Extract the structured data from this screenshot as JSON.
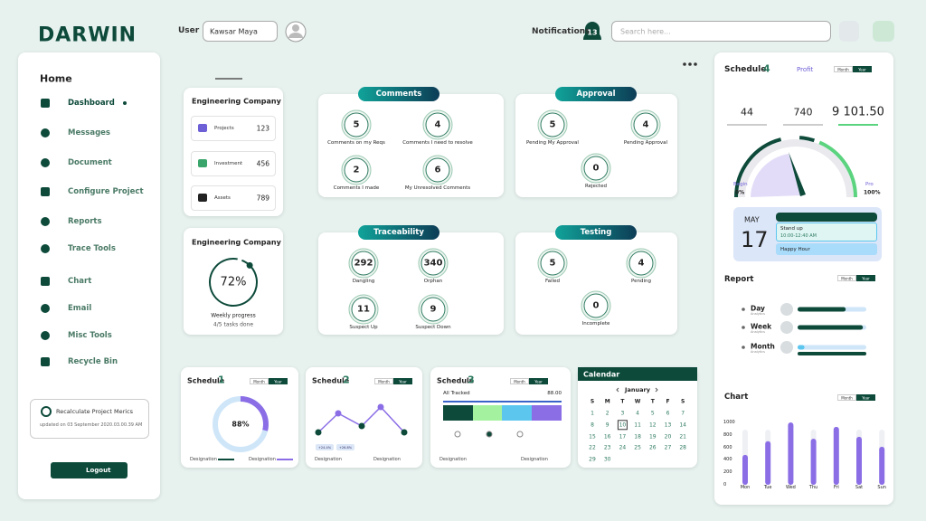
{
  "header": {
    "brand": "DARWIN",
    "user_label": "User",
    "user_name": "Kawsar Maya",
    "notifications": "Notifications",
    "notification_count": "13",
    "search_placeholder": "Search here..."
  },
  "sidebar": {
    "title": "Home",
    "items": [
      "Dashboard",
      "Messages",
      "Document",
      "Configure Project",
      "Reports",
      "Trace Tools",
      "Chart",
      "Email",
      "Misc Tools",
      "Recycle Bin"
    ],
    "recalculate": "Recalculate Project Merics",
    "updated": "updated on 03 September 2020.03.00.39 AM",
    "logout": "Logout"
  },
  "company": {
    "title": "Engineering Company",
    "items": [
      {
        "label": "Projects",
        "value": "123"
      },
      {
        "label": "Investment",
        "value": "456"
      },
      {
        "label": "Assets",
        "value": "789"
      }
    ]
  },
  "progress": {
    "title": "Engineering Company",
    "percent": "72%",
    "label": "Weekly progress",
    "tasks": "4/5 tasks done"
  },
  "cards": [
    {
      "title": "Comments",
      "items": [
        {
          "value": "5",
          "label": "Comments on my Reqs"
        },
        {
          "value": "4",
          "label": "Comments I need to resolve"
        },
        {
          "value": "2",
          "label": "Comments I made"
        },
        {
          "value": "6",
          "label": "My Unresolved Comments"
        }
      ]
    },
    {
      "title": "Approval",
      "items": [
        {
          "value": "5",
          "label": "Pending My Approval"
        },
        {
          "value": "4",
          "label": "Pending Approval"
        },
        {
          "value": "0",
          "label": "Rejected"
        }
      ]
    },
    {
      "title": "Traceability",
      "items": [
        {
          "value": "292",
          "label": "Dangling"
        },
        {
          "value": "340",
          "label": "Orphan"
        },
        {
          "value": "11",
          "label": "Suspect Up"
        },
        {
          "value": "9",
          "label": "Suspect Down"
        }
      ]
    },
    {
      "title": "Testing",
      "items": [
        {
          "value": "5",
          "label": "Failed"
        },
        {
          "value": "4",
          "label": "Pending"
        },
        {
          "value": "0",
          "label": "Incomplete"
        }
      ]
    }
  ],
  "schedules": [
    {
      "title": "Schedule",
      "number": "1",
      "toggle": [
        "Month",
        "Year"
      ],
      "center": "88%",
      "legend": [
        "Designation",
        "Designation"
      ]
    },
    {
      "title": "Schedule",
      "number": "2",
      "toggle": [
        "Month",
        "Year"
      ],
      "tags": [
        "+24.4%",
        "+26.8%"
      ],
      "legend": [
        "Designation",
        "Designation"
      ]
    },
    {
      "title": "Schedule",
      "number": "3",
      "toggle": [
        "Month",
        "Year"
      ],
      "tracked": "All Tracked",
      "tracked_value": "88.00",
      "legend": [
        "Designation",
        "Designation"
      ]
    }
  ],
  "calendar": {
    "title": "Calendar",
    "month": "January",
    "weekdays": [
      "S",
      "M",
      "T",
      "W",
      "T",
      "F",
      "S"
    ],
    "days": [
      "1",
      "2",
      "3",
      "4",
      "5",
      "6",
      "7",
      "8",
      "9",
      "10",
      "11",
      "12",
      "13",
      "14",
      "15",
      "16",
      "17",
      "18",
      "19",
      "20",
      "21",
      "22",
      "23",
      "24",
      "25",
      "26",
      "27",
      "28",
      "29",
      "30"
    ],
    "today": "10"
  },
  "profit": {
    "title": "Schedule",
    "number": "4",
    "link": "Profit",
    "toggle": [
      "Month",
      "Year"
    ],
    "stats": [
      "44",
      "740",
      "9 101.50"
    ],
    "begin": "Begin",
    "begin_value": "0%",
    "end": "Pro",
    "end_value": "100%",
    "date_month": "MAY",
    "date_day": "17",
    "events": [
      {
        "title": "Stand up",
        "time": "10:00-12:40 AM"
      },
      {
        "title": "Happy Hour"
      }
    ]
  },
  "report": {
    "title": "Report",
    "toggle": [
      "Month",
      "Year"
    ],
    "rows": [
      {
        "label": "Day",
        "sub": "Analytics"
      },
      {
        "label": "Week",
        "sub": "Analytics"
      },
      {
        "label": "Month",
        "sub": "Analytics"
      }
    ]
  },
  "chart": {
    "title": "Chart",
    "toggle": [
      "Month",
      "Year"
    ],
    "categories": [
      "Mon",
      "Tue",
      "Wed",
      "Thu",
      "Fri",
      "Sat",
      "Sun"
    ],
    "values": [
      480,
      700,
      1000,
      740,
      930,
      770,
      610
    ],
    "ylim": [
      0,
      1000
    ],
    "yticks": [
      1000,
      800,
      600,
      400,
      200,
      0
    ],
    "color": "#8b6ee6"
  }
}
